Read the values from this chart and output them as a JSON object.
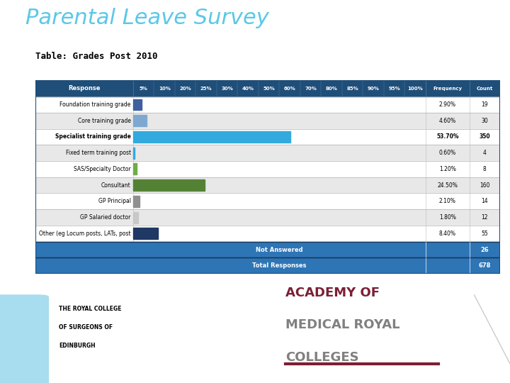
{
  "title": "Parental Leave Survey",
  "subtitle": "Table: Grades Post 2010",
  "header_bg": "#1F4E79",
  "header_text_color": "#FFFFFF",
  "row_bg_odd": "#FFFFFF",
  "row_bg_even": "#E8E8E8",
  "summary_bg": "#2E75B6",
  "summary_text_color": "#FFFFFF",
  "rows": [
    {
      "label": "Foundation training grade",
      "frequency": "2.90%",
      "count": "19",
      "bar_pct": 2.9,
      "bar_color": "#3F5F9F",
      "bold": false
    },
    {
      "label": "Core training grade",
      "frequency": "4.60%",
      "count": "30",
      "bar_pct": 4.6,
      "bar_color": "#7FA8D0",
      "bold": false
    },
    {
      "label": "Specialist training grade",
      "frequency": "53.70%",
      "count": "350",
      "bar_pct": 53.7,
      "bar_color": "#33AADD",
      "bold": true
    },
    {
      "label": "Fixed term training post",
      "frequency": "0.60%",
      "count": "4",
      "bar_pct": 0.6,
      "bar_color": "#33AADD",
      "bold": false
    },
    {
      "label": "SAS/Specialty Doctor",
      "frequency": "1.20%",
      "count": "8",
      "bar_pct": 1.2,
      "bar_color": "#70AD47",
      "bold": false
    },
    {
      "label": "Consultant",
      "frequency": "24.50%",
      "count": "160",
      "bar_pct": 24.5,
      "bar_color": "#548235",
      "bold": false
    },
    {
      "label": "GP Principal",
      "frequency": "2.10%",
      "count": "14",
      "bar_pct": 2.1,
      "bar_color": "#909090",
      "bold": false
    },
    {
      "label": "GP Salaried doctor",
      "frequency": "1.80%",
      "count": "12",
      "bar_pct": 1.8,
      "bar_color": "#C8C8C8",
      "bold": false
    },
    {
      "label": "Other (eg Locum posts, LATs, post",
      "frequency": "8.40%",
      "count": "55",
      "bar_pct": 8.4,
      "bar_color": "#1F3864",
      "bold": false
    }
  ],
  "summary_rows": [
    {
      "label": "Not Answered",
      "count": "26"
    },
    {
      "label": "Total Responses",
      "count": "678"
    }
  ],
  "pct_labels": [
    "5%",
    "10%",
    "20%",
    "25%",
    "30%",
    "40%",
    "50%",
    "60%",
    "70%",
    "80%",
    "85%",
    "90%",
    "95%",
    "100%"
  ],
  "title_color": "#5BC8E8",
  "subtitle_color": "#000000",
  "bg_color": "#FFFFFF",
  "grid_line_color": "#BBBBBB",
  "academy_color": "#7B2035",
  "academy_gray": "#808080"
}
